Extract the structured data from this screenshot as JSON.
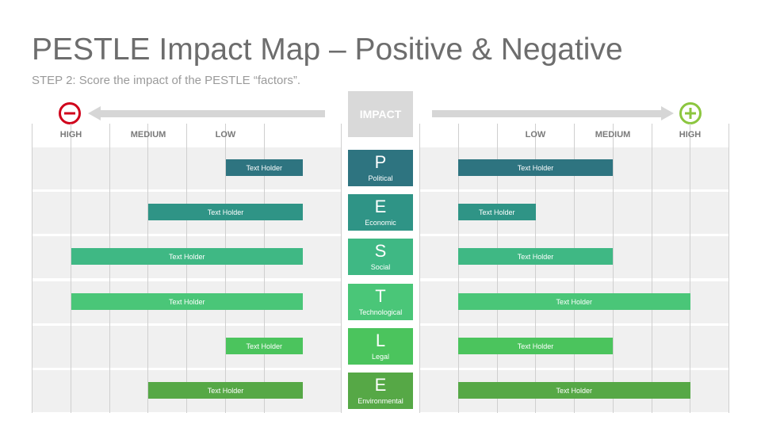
{
  "header": {
    "title": "PESTLE Impact Map – Positive & Negative",
    "subtitle": "STEP 2: Score the impact of the PESTLE “factors”."
  },
  "center_label": "IMPACT",
  "levels": {
    "negative": [
      {
        "key": "high",
        "label": "HIGH",
        "value": 3
      },
      {
        "key": "medium",
        "label": "MEDIUM",
        "value": 2
      },
      {
        "key": "low",
        "label": "LOW",
        "value": 1
      }
    ],
    "positive": [
      {
        "key": "low",
        "label": "LOW",
        "value": 1
      },
      {
        "key": "medium",
        "label": "MEDIUM",
        "value": 2
      },
      {
        "key": "high",
        "label": "HIGH",
        "value": 3
      }
    ]
  },
  "scale_max": 3,
  "icons": {
    "negative": "minus-circle-icon",
    "positive": "plus-circle-icon"
  },
  "colors": {
    "negative_icon": "#d0021b",
    "positive_icon": "#8cc63f",
    "arrow": "#d6d6d6",
    "impact_box": "#d9d9d9",
    "band": "#f0f0f0"
  },
  "factors": [
    {
      "letter": "P",
      "name": "Political",
      "color": "#2e7480",
      "negative": {
        "label": "Text Holder",
        "impact": 1
      },
      "positive": {
        "label": "Text Holder",
        "impact": 2
      }
    },
    {
      "letter": "E",
      "name": "Economic",
      "color": "#2f9486",
      "negative": {
        "label": "Text Holder",
        "impact": 2
      },
      "positive": {
        "label": "Text Holder",
        "impact": 1
      }
    },
    {
      "letter": "S",
      "name": "Social",
      "color": "#3fb884",
      "negative": {
        "label": "Text Holder",
        "impact": 3
      },
      "positive": {
        "label": "Text Holder",
        "impact": 2
      }
    },
    {
      "letter": "T",
      "name": "Technological",
      "color": "#4ac678",
      "negative": {
        "label": "Text Holder",
        "impact": 3
      },
      "positive": {
        "label": "Text Holder",
        "impact": 3
      }
    },
    {
      "letter": "L",
      "name": "Legal",
      "color": "#4bc45d",
      "negative": {
        "label": "Text Holder",
        "impact": 1
      },
      "positive": {
        "label": "Text Holder",
        "impact": 2
      }
    },
    {
      "letter": "E",
      "name": "Environmental",
      "color": "#56a846",
      "negative": {
        "label": "Text Holder",
        "impact": 2
      },
      "positive": {
        "label": "Text Holder",
        "impact": 3
      }
    }
  ]
}
